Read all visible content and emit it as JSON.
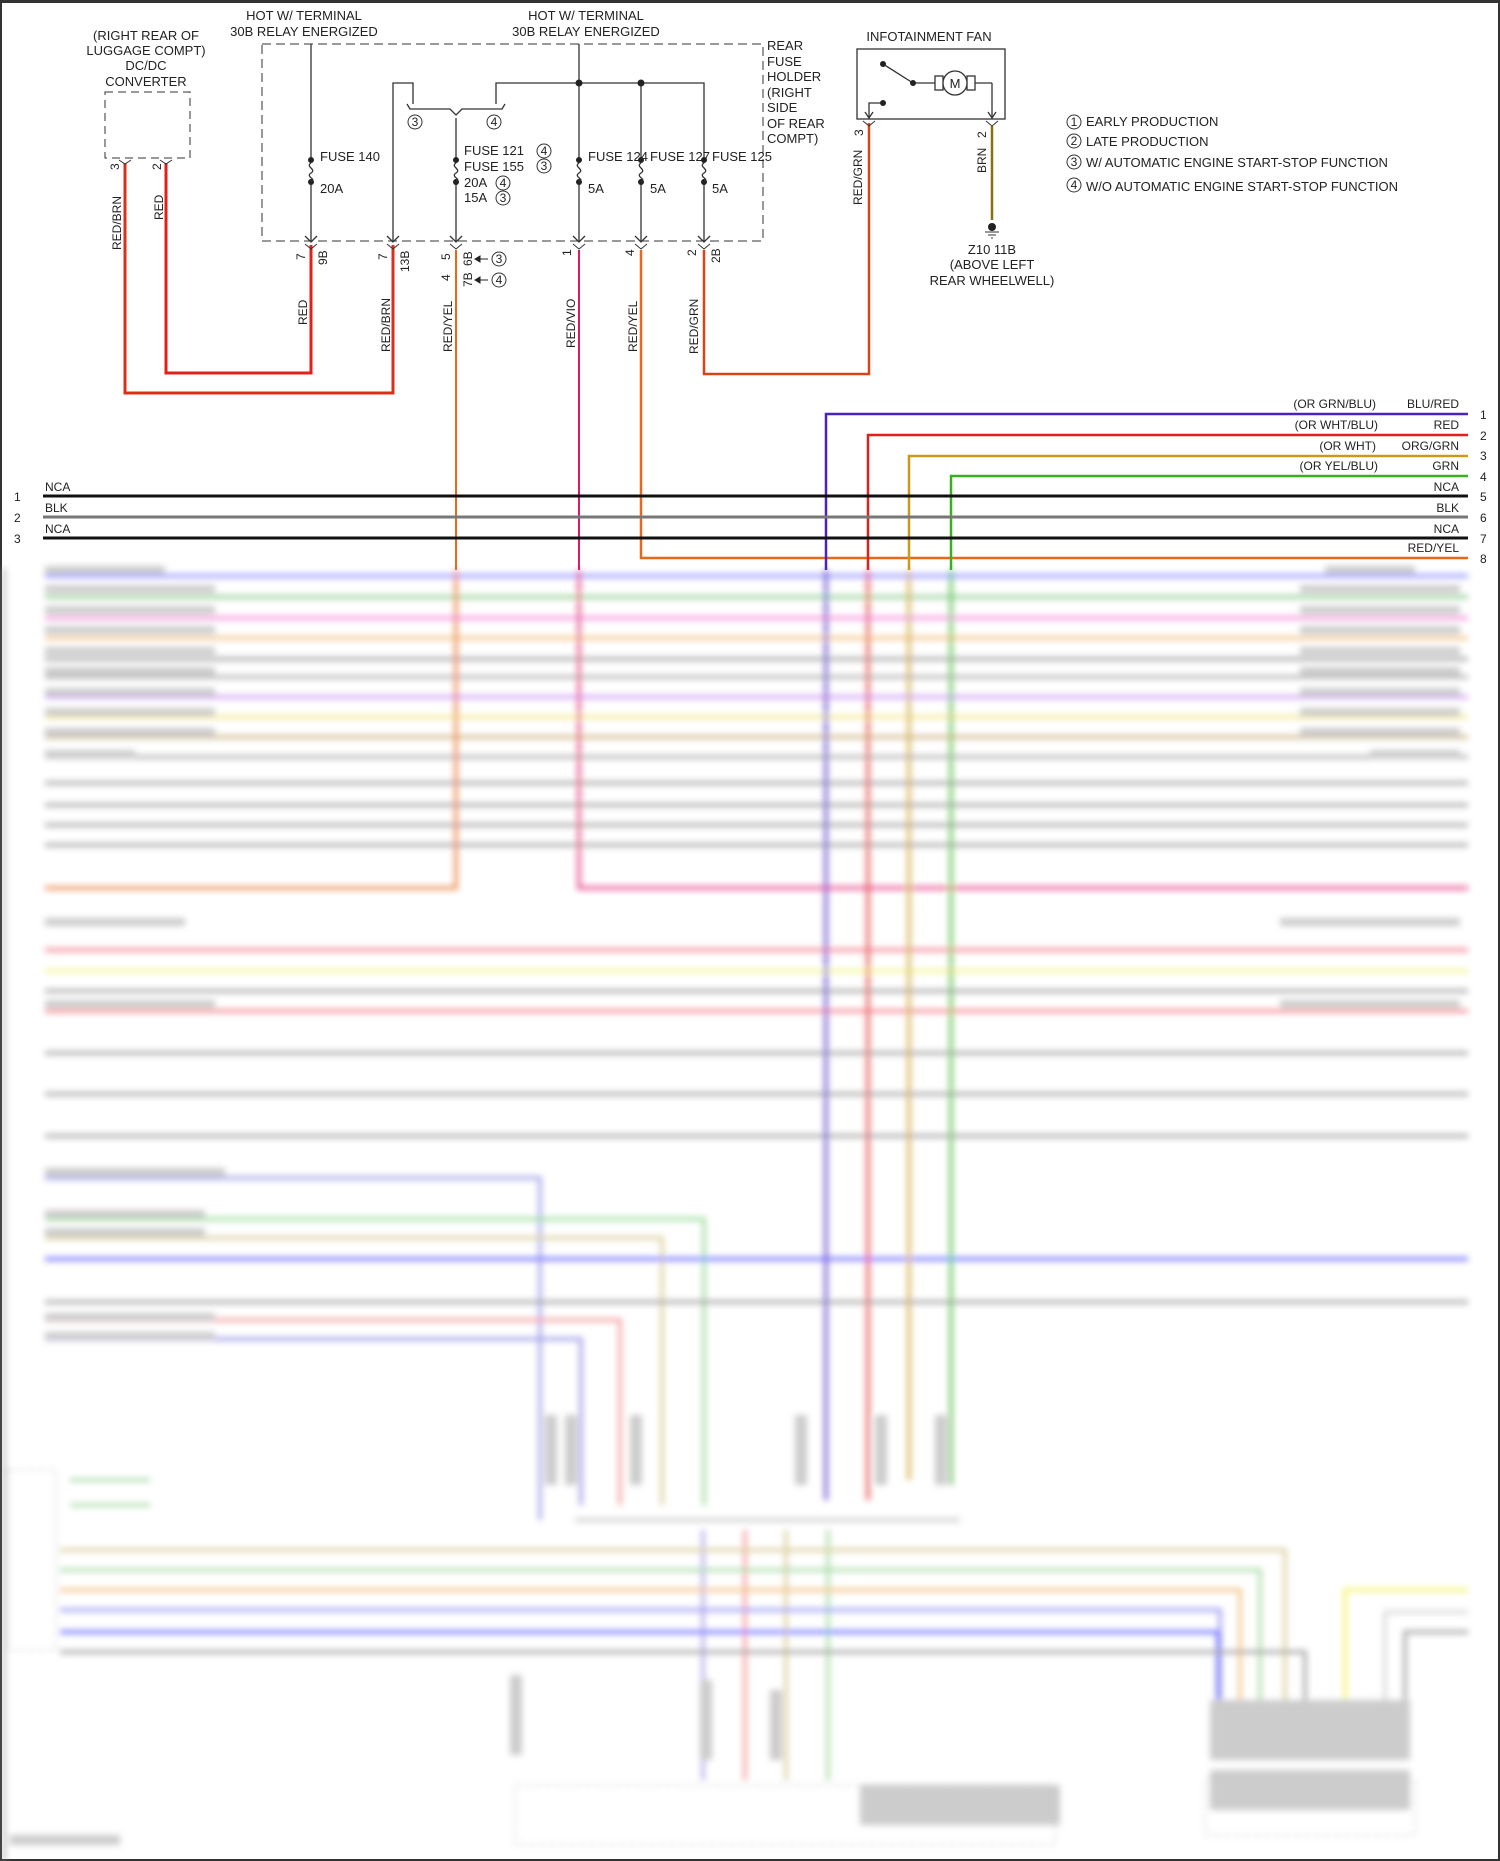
{
  "colors": {
    "red": "#e0201a",
    "red_brn": "#d8301a",
    "red_yel": "#e8681a",
    "red_vio": "#e0186a",
    "red_grn": "#d84418",
    "brn": "#8a7010",
    "blu_red": "#4a22c0",
    "org_grn": "#c89a18",
    "grn": "#38b020",
    "blk": "#111111",
    "gray": "#777777"
  },
  "dcdc": {
    "lines": [
      "(RIGHT REAR OF",
      "LUGGAGE COMPT)",
      "DC/DC",
      "CONVERTER"
    ],
    "pins": [
      "3",
      "2"
    ],
    "wires": [
      "RED/BRN",
      "RED"
    ]
  },
  "hot_labels": [
    {
      "line1": "HOT W/ TERMINAL",
      "line2": "30B RELAY ENERGIZED"
    },
    {
      "line1": "HOT W/ TERMINAL",
      "line2": "30B RELAY ENERGIZED"
    }
  ],
  "fuse_holder": {
    "lines": [
      "REAR",
      "FUSE",
      "HOLDER",
      "(RIGHT",
      "SIDE",
      "OF REAR",
      "COMPT)"
    ],
    "fuse140": {
      "name": "FUSE 140",
      "rating": "20A"
    },
    "fuse121": "FUSE 121",
    "fuse155": "FUSE 155",
    "rating_20a": "20A",
    "rating_15a": "15A",
    "fuse124": {
      "name": "FUSE 124",
      "rating": "5A"
    },
    "fuse127": {
      "name": "FUSE 127",
      "rating": "5A"
    },
    "fuse125": {
      "name": "FUSE 125",
      "rating": "5A"
    },
    "option_marks": [
      "3",
      "4",
      "4",
      "3",
      "4",
      "3"
    ]
  },
  "fuse_outputs": [
    {
      "pin": "7",
      "cavity": "9B",
      "wire": "RED"
    },
    {
      "pin": "7",
      "cavity": "13B",
      "wire": "RED/BRN"
    },
    {
      "pin": "5",
      "cavity": "6B",
      "pin2": "4",
      "cavity2": "7B",
      "mark": "3",
      "mark2": "4",
      "wire": "RED/YEL"
    },
    {
      "pin": "1",
      "wire": "RED/VIO"
    },
    {
      "pin": "4",
      "wire": "RED/YEL"
    },
    {
      "pin": "2",
      "cavity": "2B",
      "wire": "RED/GRN"
    }
  ],
  "fan": {
    "title": "INFOTAINMENT FAN",
    "motor": "M",
    "pin3": "3",
    "pin3_wire": "RED/GRN",
    "pin2": "2",
    "pin2_wire": "BRN",
    "ground": [
      "Z10 11B",
      "(ABOVE LEFT",
      "REAR WHEELWELL)"
    ]
  },
  "legend": [
    {
      "num": "1",
      "text": "EARLY PRODUCTION"
    },
    {
      "num": "2",
      "text": "LATE PRODUCTION"
    },
    {
      "num": "3",
      "text": "W/ AUTOMATIC ENGINE START-STOP FUNCTION"
    },
    {
      "num": "4",
      "text": "W/O AUTOMATIC ENGINE START-STOP FUNCTION"
    }
  ],
  "bus_right": [
    {
      "alt": "(OR GRN/BLU)",
      "color_label": "BLU/RED",
      "num": "1"
    },
    {
      "alt": "(OR WHT/BLU)",
      "color_label": "RED",
      "num": "2"
    },
    {
      "alt": "(OR WHT)",
      "color_label": "ORG/GRN",
      "num": "3"
    },
    {
      "alt": "(OR YEL/BLU)",
      "color_label": "GRN",
      "num": "4"
    },
    {
      "color_label": "NCA",
      "num": "5"
    },
    {
      "color_label": "BLK",
      "num": "6"
    },
    {
      "color_label": "NCA",
      "num": "7"
    },
    {
      "color_label": "RED/YEL",
      "num": "8"
    }
  ],
  "bus_left": [
    {
      "num": "1",
      "label": "NCA"
    },
    {
      "num": "2",
      "label": "BLK"
    },
    {
      "num": "3",
      "label": "NCA"
    }
  ]
}
